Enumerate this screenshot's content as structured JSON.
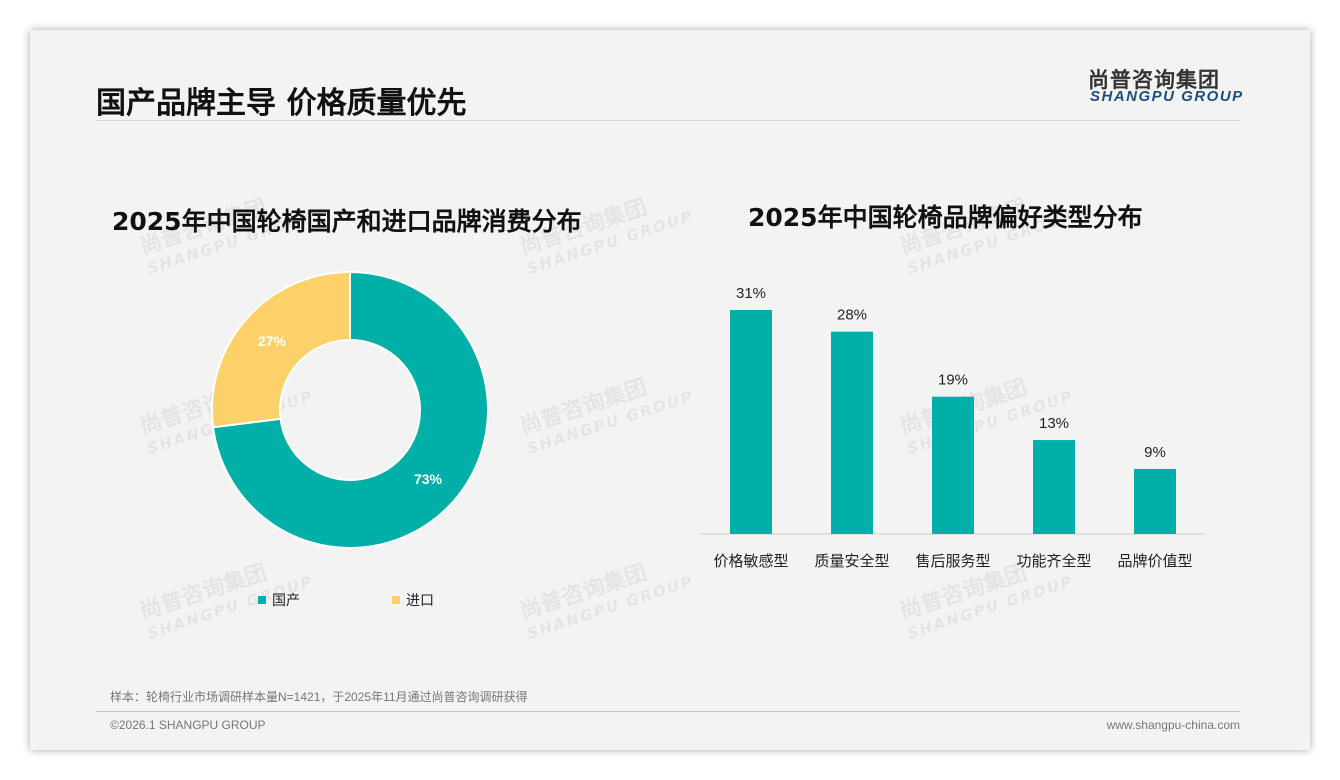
{
  "header": {
    "title": "国产品牌主导 价格质量优先",
    "logo_cn": "尚普咨询集团",
    "logo_en": "SHANGPU GROUP"
  },
  "watermark": {
    "cn": "尚普咨询集团",
    "en": "SHANGPU GROUP"
  },
  "colors": {
    "teal": "#00b0a8",
    "yellow": "#fdd16a"
  },
  "chart_data": [
    {
      "type": "pie",
      "title": "2025年中国轮椅国产和进口品牌消费分布",
      "donut": true,
      "slices": [
        {
          "name": "国产",
          "value": 73,
          "label": "73%",
          "color": "#00b0a8"
        },
        {
          "name": "进口",
          "value": 27,
          "label": "27%",
          "color": "#fdd16a"
        }
      ],
      "legend": "bottom"
    },
    {
      "type": "bar",
      "title": "2025年中国轮椅品牌偏好类型分布",
      "categories": [
        "价格敏感型",
        "质量安全型",
        "售后服务型",
        "功能齐全型",
        "品牌价值型"
      ],
      "values": [
        31,
        28,
        19,
        13,
        9
      ],
      "labels": [
        "31%",
        "28%",
        "19%",
        "13%",
        "9%"
      ],
      "ylim": [
        0,
        32
      ],
      "color": "#00b0a8"
    }
  ],
  "footer": {
    "note": "样本：轮椅行业市场调研样本量N=1421，于2025年11月通过尚普咨询调研获得",
    "copyright": "©2026.1 SHANGPU GROUP",
    "url": "www.shangpu-china.com"
  }
}
